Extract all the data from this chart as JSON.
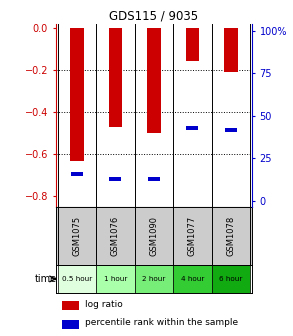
{
  "title": "GDS115 / 9035",
  "samples": [
    "GSM1075",
    "GSM1076",
    "GSM1090",
    "GSM1077",
    "GSM1078"
  ],
  "time_labels": [
    "0.5 hour",
    "1 hour",
    "2 hour",
    "4 hour",
    "6 hour"
  ],
  "log_ratios": [
    -0.63,
    -0.47,
    -0.5,
    -0.16,
    -0.21
  ],
  "percentile_ranks": [
    0.18,
    0.15,
    0.15,
    0.43,
    0.42
  ],
  "bar_color": "#cc0000",
  "marker_color": "#0000cc",
  "ylim_left": [
    -0.85,
    0.02
  ],
  "ylim_right": [
    -3.54,
    104.17
  ],
  "yticks_left": [
    0.0,
    -0.2,
    -0.4,
    -0.6,
    -0.8
  ],
  "yticks_right": [
    0,
    25,
    50,
    75,
    100
  ],
  "bg_color": "#ffffff",
  "left_axis_color": "#cc0000",
  "right_axis_color": "#0000cc",
  "bar_width": 0.35,
  "legend_log_ratio": "log ratio",
  "legend_percentile": "percentile rank within the sample",
  "time_label": "time",
  "time_colors": [
    "#dfffdf",
    "#aaffaa",
    "#77ee77",
    "#33cc33",
    "#11aa11"
  ]
}
